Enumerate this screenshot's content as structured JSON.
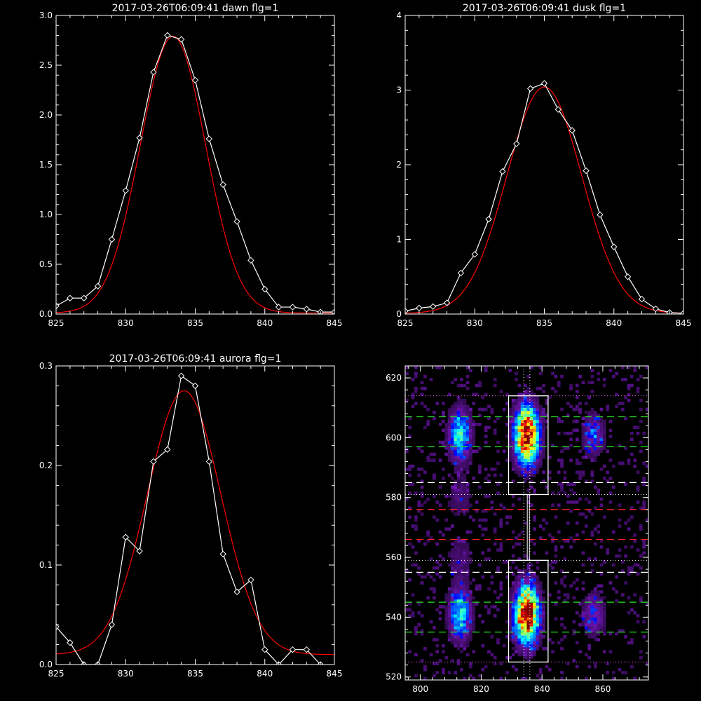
{
  "colors": {
    "background": "#000000",
    "axes": "#ffffff",
    "data": "#ffffff",
    "fit": "#ff0000",
    "green_dash": "#22dd22",
    "red_dash": "#ff2222",
    "white_dash": "#ffffff",
    "magenta_dot": "#ff66ff"
  },
  "chart_data": [
    {
      "id": "dawn",
      "type": "line",
      "title": "2017-03-26T06:09:41 dawn flg=1",
      "xlim": [
        825,
        845
      ],
      "ylim": [
        0,
        3.0
      ],
      "xticks": [
        825,
        830,
        835,
        840,
        845
      ],
      "xtick_labels": [
        "825",
        "830",
        "835",
        "840",
        "845"
      ],
      "yticks": [
        0,
        0.5,
        1.0,
        1.5,
        2.0,
        2.5,
        3.0
      ],
      "ytick_labels": [
        "0.0",
        "0.5",
        "1.0",
        "1.5",
        "2.0",
        "2.5",
        "3.0"
      ],
      "series": [
        {
          "kind": "data",
          "x": [
            825,
            826,
            827,
            828,
            829,
            830,
            831,
            832,
            833,
            834,
            835,
            836,
            837,
            838,
            839,
            840,
            841,
            842,
            843,
            844,
            845
          ],
          "y": [
            0.08,
            0.16,
            0.16,
            0.28,
            0.75,
            1.24,
            1.77,
            2.43,
            2.8,
            2.76,
            2.35,
            1.76,
            1.3,
            0.93,
            0.54,
            0.25,
            0.07,
            0.07,
            0.05,
            0.02,
            0.02
          ]
        },
        {
          "kind": "fit",
          "gauss": {
            "amplitude": 2.78,
            "center": 833.4,
            "sigma": 2.35,
            "offset": 0.01
          }
        }
      ]
    },
    {
      "id": "dusk",
      "type": "line",
      "title": "2017-03-26T06:09:41 dusk flg=1",
      "xlim": [
        825,
        845
      ],
      "ylim": [
        0,
        4
      ],
      "xticks": [
        825,
        830,
        835,
        840,
        845
      ],
      "xtick_labels": [
        "825",
        "830",
        "835",
        "840",
        "845"
      ],
      "yticks": [
        0,
        1,
        2,
        3,
        4
      ],
      "ytick_labels": [
        "0",
        "1",
        "2",
        "3",
        "4"
      ],
      "series": [
        {
          "kind": "data",
          "x": [
            825,
            826,
            827,
            828,
            829,
            830,
            831,
            832,
            833,
            834,
            835,
            836,
            837,
            838,
            839,
            840,
            841,
            842,
            843,
            844,
            845
          ],
          "y": [
            0.04,
            0.08,
            0.1,
            0.15,
            0.55,
            0.8,
            1.27,
            1.91,
            2.28,
            3.02,
            3.09,
            2.74,
            2.46,
            1.92,
            1.33,
            0.9,
            0.5,
            0.2,
            0.07,
            0.02,
            0.01
          ]
        },
        {
          "kind": "fit",
          "gauss": {
            "amplitude": 3.03,
            "center": 835.0,
            "sigma": 2.7,
            "offset": 0.01
          }
        }
      ]
    },
    {
      "id": "aurora",
      "type": "line",
      "title": "2017-03-26T06:09:41 aurora flg=1",
      "xlim": [
        825,
        845
      ],
      "ylim": [
        0,
        0.3
      ],
      "xticks": [
        825,
        830,
        835,
        840,
        845
      ],
      "xtick_labels": [
        "825",
        "830",
        "835",
        "840",
        "845"
      ],
      "yticks": [
        0,
        0.1,
        0.2,
        0.3
      ],
      "ytick_labels": [
        "0.0",
        "0.1",
        "0.2",
        "0.3"
      ],
      "series": [
        {
          "kind": "data",
          "x": [
            825,
            826,
            827,
            828,
            829,
            830,
            831,
            832,
            833,
            834,
            835,
            836,
            837,
            838,
            839,
            840,
            841,
            842,
            843,
            844
          ],
          "y": [
            0.038,
            0.022,
            0.0,
            0.0,
            0.04,
            0.128,
            0.114,
            0.204,
            0.216,
            0.29,
            0.28,
            0.204,
            0.111,
            0.073,
            0.085,
            0.015,
            0.0,
            0.015,
            0.015,
            0.0
          ]
        },
        {
          "kind": "fit",
          "gauss": {
            "amplitude": 0.265,
            "center": 834.2,
            "sigma": 2.65,
            "offset": 0.01
          }
        }
      ]
    },
    {
      "id": "image",
      "type": "heatmap",
      "title": "",
      "xlim": [
        795,
        875
      ],
      "ylim": [
        519,
        624
      ],
      "xticks": [
        800,
        820,
        840,
        860
      ],
      "xtick_labels": [
        "800",
        "820",
        "840",
        "860"
      ],
      "yticks": [
        520,
        540,
        560,
        580,
        600,
        620
      ],
      "ytick_labels": [
        "520",
        "540",
        "560",
        "580",
        "600",
        "620"
      ],
      "blobs": [
        {
          "x": 813,
          "y": 541,
          "sx": 2.5,
          "sy": 6,
          "amp": 0.45
        },
        {
          "x": 813,
          "y": 601,
          "sx": 2.5,
          "sy": 6,
          "amp": 0.45
        },
        {
          "x": 835,
          "y": 541,
          "sx": 2.7,
          "sy": 6.5,
          "amp": 1.0
        },
        {
          "x": 835,
          "y": 601,
          "sx": 2.7,
          "sy": 6.5,
          "amp": 1.0
        },
        {
          "x": 857,
          "y": 541,
          "sx": 2.5,
          "sy": 5,
          "amp": 0.25
        },
        {
          "x": 857,
          "y": 601,
          "sx": 2.5,
          "sy": 5,
          "amp": 0.25
        },
        {
          "x": 813,
          "y": 580,
          "sx": 3,
          "sy": 5,
          "amp": 0.12
        },
        {
          "x": 813,
          "y": 560,
          "sx": 3,
          "sy": 5,
          "amp": 0.12
        }
      ],
      "boxes": [
        {
          "x0": 829,
          "x1": 842,
          "y0": 525,
          "y1": 559
        },
        {
          "x0": 829,
          "x1": 842,
          "y0": 581,
          "y1": 614
        }
      ],
      "vlines_dotted": [
        834,
        836
      ],
      "hlines": [
        {
          "y": 614,
          "style": "magenta_dot"
        },
        {
          "y": 607,
          "style": "green_dash"
        },
        {
          "y": 597,
          "style": "green_dash"
        },
        {
          "y": 585,
          "style": "white_dash"
        },
        {
          "y": 581,
          "style": "white_dot"
        },
        {
          "y": 576,
          "style": "red_dash"
        },
        {
          "y": 566,
          "style": "red_dash"
        },
        {
          "y": 559,
          "style": "white_dot"
        },
        {
          "y": 555,
          "style": "white_dash"
        },
        {
          "y": 545,
          "style": "green_dash"
        },
        {
          "y": 535,
          "style": "green_dash"
        },
        {
          "y": 525,
          "style": "magenta_dot"
        }
      ]
    }
  ]
}
